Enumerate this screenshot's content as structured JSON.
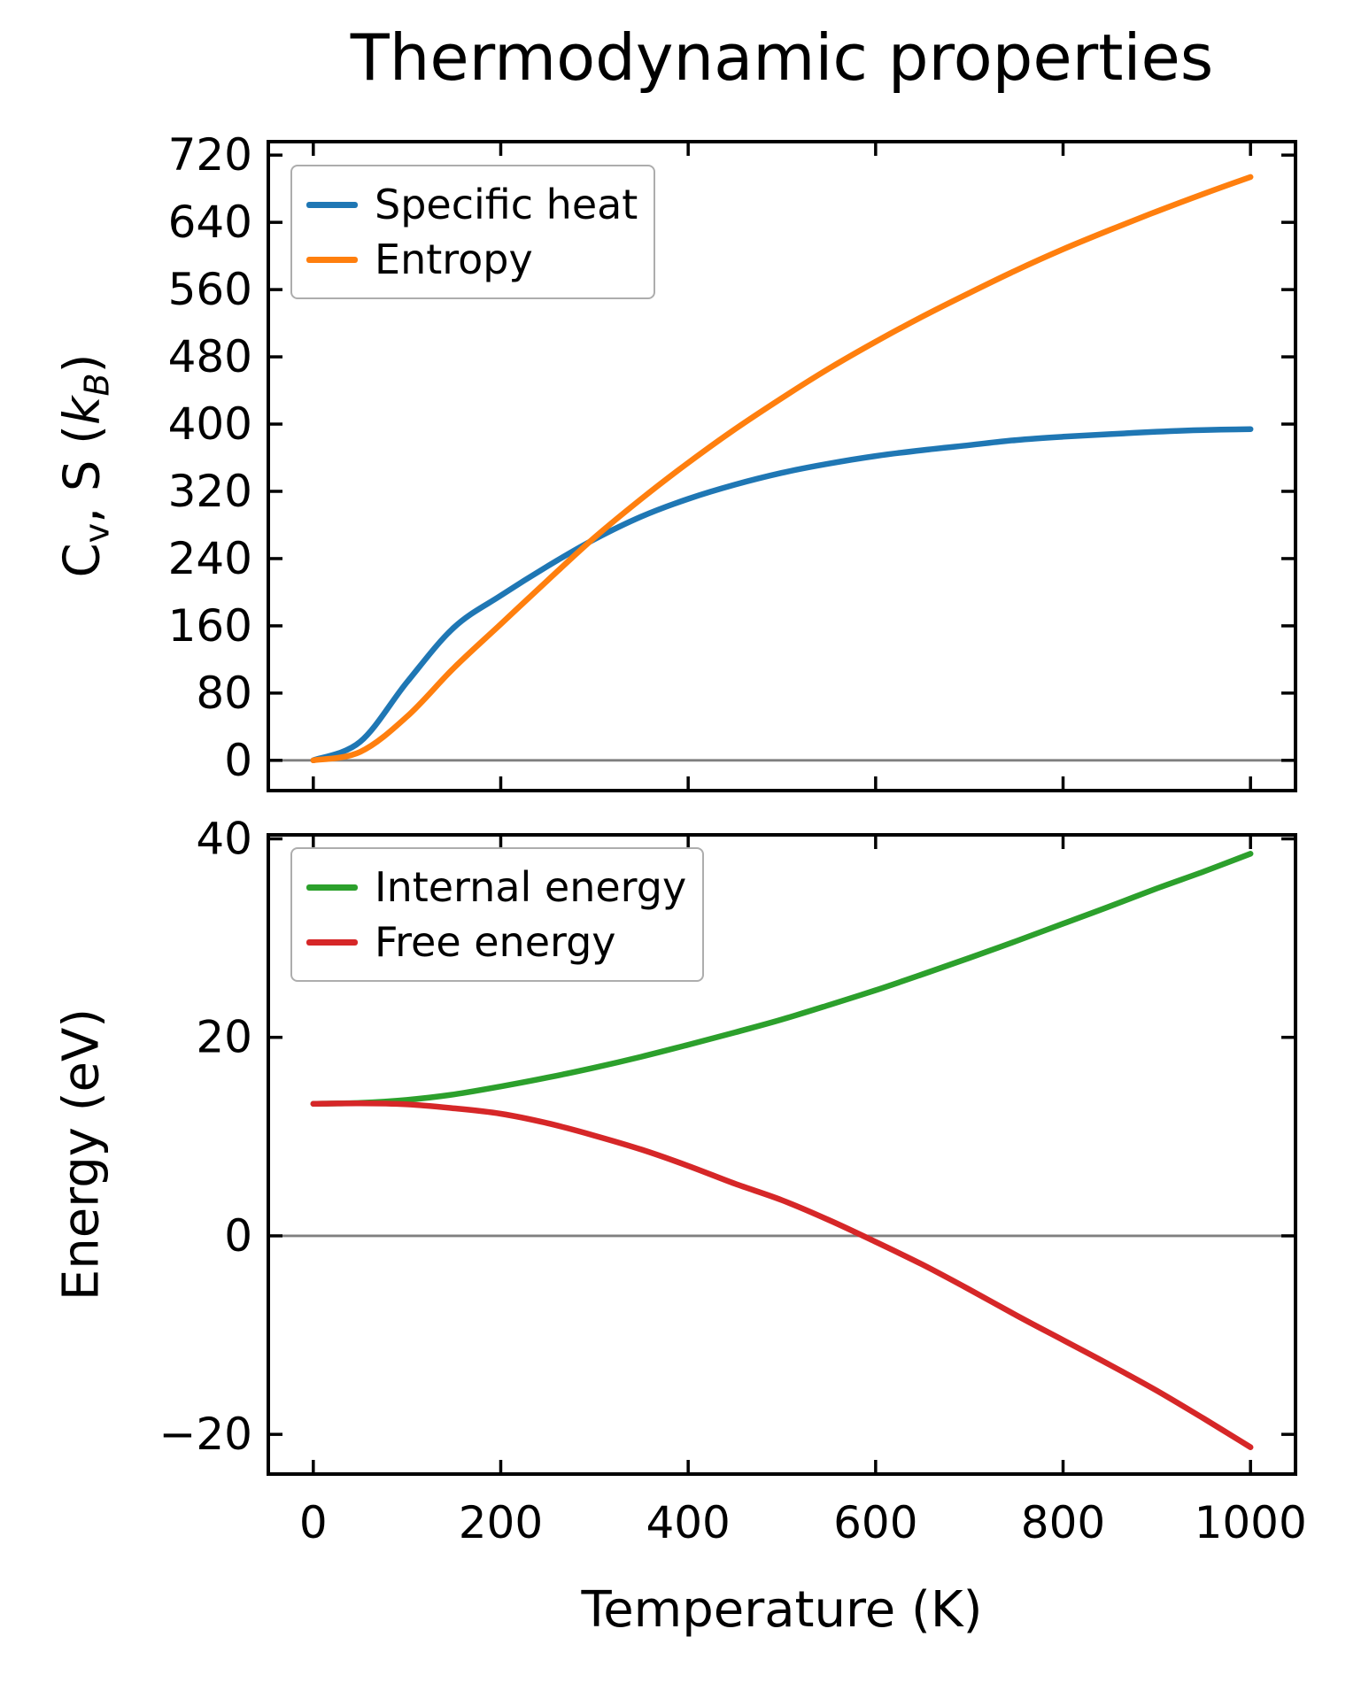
{
  "title": "Thermodynamic properties",
  "xlabel": "Temperature (K)",
  "colors": {
    "specific_heat": "#1f77b4",
    "entropy": "#ff7f0e",
    "internal_energy": "#2ca02c",
    "free_energy": "#d62728",
    "zero_line": "#7f7f7f",
    "axis": "#000000",
    "legend_edge": "#adadad"
  },
  "chart_data": [
    {
      "type": "line",
      "ylabel_rich": [
        {
          "t": "C"
        },
        {
          "t": "v",
          "sub": true
        },
        {
          "t": ", S ("
        },
        {
          "t": "k",
          "italic": true
        },
        {
          "t": "B",
          "italic": true,
          "sub": true
        },
        {
          "t": ")"
        }
      ],
      "x_ticks": [
        0,
        200,
        400,
        600,
        800,
        1000
      ],
      "show_x_tick_labels": false,
      "y_ticks": [
        0,
        80,
        160,
        240,
        320,
        400,
        480,
        560,
        640,
        720
      ],
      "xlim": [
        -48,
        1048
      ],
      "ylim": [
        -36,
        736
      ],
      "zero_line": true,
      "grid": false,
      "legend_position": "upper left",
      "x": [
        0,
        50,
        100,
        150,
        200,
        250,
        300,
        350,
        400,
        450,
        500,
        550,
        600,
        650,
        700,
        750,
        800,
        850,
        900,
        950,
        1000
      ],
      "series": [
        {
          "name": "Specific heat",
          "color": "#1f77b4",
          "values": [
            0,
            22,
            93,
            158,
            196,
            231,
            263,
            290,
            311,
            328,
            342,
            353,
            362,
            369,
            375,
            381,
            385,
            388,
            391,
            393,
            394
          ]
        },
        {
          "name": "Entropy",
          "color": "#ff7f0e",
          "values": [
            0,
            10,
            52,
            110,
            162,
            214,
            265,
            311,
            354,
            394,
            431,
            466,
            498,
            528,
            556,
            583,
            608,
            631,
            653,
            674,
            694
          ]
        }
      ]
    },
    {
      "type": "line",
      "ylabel": "Energy (eV)",
      "x_ticks": [
        0,
        200,
        400,
        600,
        800,
        1000
      ],
      "show_x_tick_labels": true,
      "y_ticks": [
        -20,
        0,
        20,
        40
      ],
      "xlim": [
        -48,
        1048
      ],
      "ylim": [
        -24,
        40.4
      ],
      "zero_line": true,
      "grid": false,
      "legend_position": "upper left",
      "x": [
        0,
        50,
        100,
        150,
        200,
        250,
        300,
        350,
        400,
        450,
        500,
        550,
        600,
        650,
        700,
        750,
        800,
        850,
        900,
        950,
        1000
      ],
      "series": [
        {
          "name": "Internal energy",
          "color": "#2ca02c",
          "values": [
            13.3,
            13.4,
            13.7,
            14.25,
            15.05,
            15.95,
            16.95,
            18.05,
            19.25,
            20.5,
            21.8,
            23.25,
            24.75,
            26.35,
            28.0,
            29.7,
            31.45,
            33.2,
            35.0,
            36.7,
            38.5
          ]
        },
        {
          "name": "Free energy",
          "color": "#d62728",
          "values": [
            13.3,
            13.36,
            13.25,
            12.85,
            12.3,
            11.35,
            10.1,
            8.7,
            7.05,
            5.25,
            3.6,
            1.6,
            -0.6,
            -2.9,
            -5.4,
            -8.0,
            -10.5,
            -13.0,
            -15.6,
            -18.4,
            -21.3
          ]
        }
      ]
    }
  ]
}
